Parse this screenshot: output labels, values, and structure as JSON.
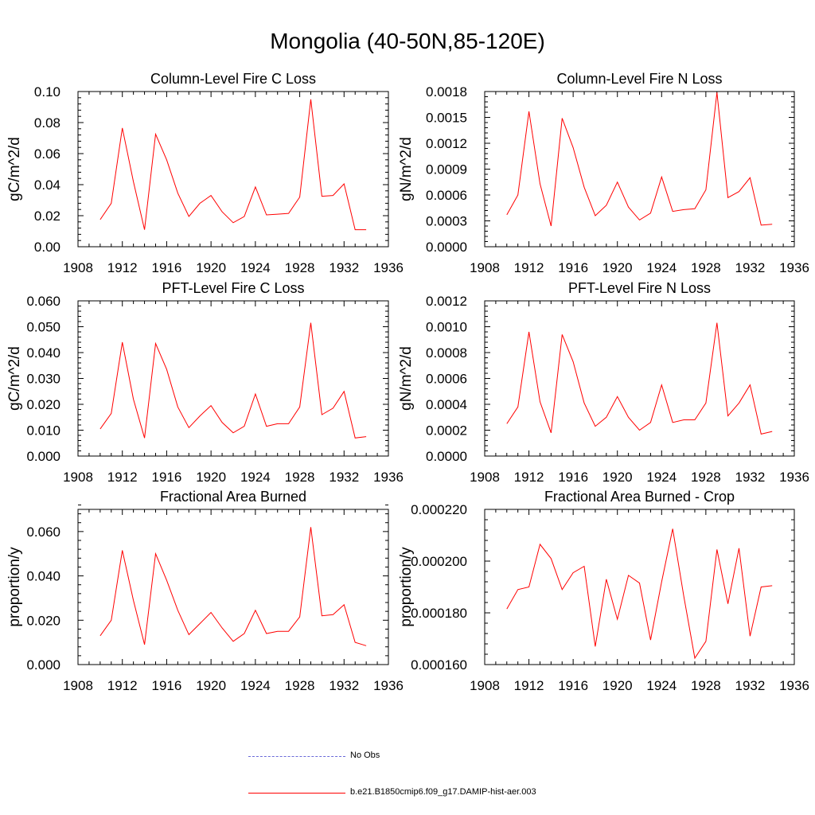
{
  "title": "Mongolia (40-50N,85-120E)",
  "colors": {
    "model": "#ff0000",
    "obs": "#6a6ad8",
    "axis": "#000000"
  },
  "legend": {
    "obs_label": "No Obs",
    "model_label": "b.e21.B1850cmip6.f09_g17.DAMIP-hist-aer.003"
  },
  "chart_data": [
    {
      "type": "line",
      "title": "Column-Level Fire C Loss",
      "ylabel": "gC/m^2/d",
      "xlim": [
        1908,
        1936
      ],
      "xticks": [
        "1908",
        "1912",
        "1916",
        "1920",
        "1924",
        "1928",
        "1932",
        "1936"
      ],
      "ylim": [
        0,
        0.1
      ],
      "yticks": [
        "0.00",
        "0.02",
        "0.04",
        "0.06",
        "0.08",
        "0.10"
      ],
      "x": [
        1910,
        1911,
        1912,
        1913,
        1914,
        1915,
        1916,
        1917,
        1918,
        1919,
        1920,
        1921,
        1922,
        1923,
        1924,
        1925,
        1926,
        1927,
        1928,
        1929,
        1930,
        1931,
        1932,
        1933,
        1934
      ],
      "series": [
        {
          "values": [
            0.0175,
            0.028,
            0.0765,
            0.042,
            0.011,
            0.0725,
            0.056,
            0.0345,
            0.0195,
            0.028,
            0.033,
            0.0225,
            0.0155,
            0.0195,
            0.0385,
            0.0205,
            0.021,
            0.0215,
            0.032,
            0.095,
            0.0325,
            0.033,
            0.0405,
            0.011,
            0.011
          ]
        }
      ]
    },
    {
      "type": "line",
      "title": "Column-Level Fire N Loss",
      "ylabel": "gN/m^2/d",
      "xlim": [
        1908,
        1936
      ],
      "xticks": [
        "1908",
        "1912",
        "1916",
        "1920",
        "1924",
        "1928",
        "1932",
        "1936"
      ],
      "ylim": [
        0,
        0.0018
      ],
      "yticks": [
        "0.0000",
        "0.0003",
        "0.0006",
        "0.0009",
        "0.0012",
        "0.0015",
        "0.0018"
      ],
      "x": [
        1910,
        1911,
        1912,
        1913,
        1914,
        1915,
        1916,
        1917,
        1918,
        1919,
        1920,
        1921,
        1922,
        1923,
        1924,
        1925,
        1926,
        1927,
        1928,
        1929,
        1930,
        1931,
        1932,
        1933,
        1934
      ],
      "series": [
        {
          "values": [
            0.00037,
            0.0006,
            0.00157,
            0.00073,
            0.00024,
            0.00149,
            0.00115,
            0.00069,
            0.00036,
            0.00048,
            0.00075,
            0.00046,
            0.00031,
            0.00039,
            0.00081,
            0.00041,
            0.00043,
            0.00044,
            0.00066,
            0.00179,
            0.00057,
            0.00064,
            0.0008,
            0.00025,
            0.00026
          ]
        }
      ]
    },
    {
      "type": "line",
      "title": "PFT-Level Fire C Loss",
      "ylabel": "gC/m^2/d",
      "xlim": [
        1908,
        1936
      ],
      "xticks": [
        "1908",
        "1912",
        "1916",
        "1920",
        "1924",
        "1928",
        "1932",
        "1936"
      ],
      "ylim": [
        0,
        0.06
      ],
      "yticks": [
        "0.000",
        "0.010",
        "0.020",
        "0.030",
        "0.040",
        "0.050",
        "0.060"
      ],
      "x": [
        1910,
        1911,
        1912,
        1913,
        1914,
        1915,
        1916,
        1917,
        1918,
        1919,
        1920,
        1921,
        1922,
        1923,
        1924,
        1925,
        1926,
        1927,
        1928,
        1929,
        1930,
        1931,
        1932,
        1933,
        1934
      ],
      "series": [
        {
          "values": [
            0.0105,
            0.0165,
            0.044,
            0.022,
            0.007,
            0.0435,
            0.0335,
            0.019,
            0.011,
            0.0155,
            0.0195,
            0.013,
            0.009,
            0.0115,
            0.024,
            0.0115,
            0.0125,
            0.0125,
            0.019,
            0.0515,
            0.016,
            0.0185,
            0.025,
            0.007,
            0.0075
          ]
        }
      ]
    },
    {
      "type": "line",
      "title": "PFT-Level Fire N Loss",
      "ylabel": "gN/m^2/d",
      "xlim": [
        1908,
        1936
      ],
      "xticks": [
        "1908",
        "1912",
        "1916",
        "1920",
        "1924",
        "1928",
        "1932",
        "1936"
      ],
      "ylim": [
        0,
        0.0012
      ],
      "yticks": [
        "0.0000",
        "0.0002",
        "0.0004",
        "0.0006",
        "0.0008",
        "0.0010",
        "0.0012"
      ],
      "x": [
        1910,
        1911,
        1912,
        1913,
        1914,
        1915,
        1916,
        1917,
        1918,
        1919,
        1920,
        1921,
        1922,
        1923,
        1924,
        1925,
        1926,
        1927,
        1928,
        1929,
        1930,
        1931,
        1932,
        1933,
        1934
      ],
      "series": [
        {
          "values": [
            0.00025,
            0.00038,
            0.00096,
            0.00042,
            0.00018,
            0.00094,
            0.00073,
            0.00041,
            0.00023,
            0.0003,
            0.00046,
            0.0003,
            0.0002,
            0.00026,
            0.00055,
            0.00026,
            0.00028,
            0.00028,
            0.00041,
            0.00103,
            0.00031,
            0.00041,
            0.00055,
            0.00017,
            0.00019
          ]
        }
      ]
    },
    {
      "type": "line",
      "title": "Fractional Area Burned",
      "ylabel": "proportion/y",
      "xlim": [
        1908,
        1936
      ],
      "xticks": [
        "1908",
        "1912",
        "1916",
        "1920",
        "1924",
        "1928",
        "1932",
        "1936"
      ],
      "ylim": [
        0,
        0.07
      ],
      "yticks": [
        "0.000",
        "0.020",
        "0.040",
        "0.060"
      ],
      "x": [
        1910,
        1911,
        1912,
        1913,
        1914,
        1915,
        1916,
        1917,
        1918,
        1919,
        1920,
        1921,
        1922,
        1923,
        1924,
        1925,
        1926,
        1927,
        1928,
        1929,
        1930,
        1931,
        1932,
        1933,
        1934
      ],
      "series": [
        {
          "values": [
            0.013,
            0.02,
            0.0515,
            0.029,
            0.009,
            0.05,
            0.038,
            0.0245,
            0.0135,
            0.0185,
            0.0235,
            0.0165,
            0.0105,
            0.014,
            0.0245,
            0.014,
            0.015,
            0.015,
            0.0215,
            0.062,
            0.022,
            0.0225,
            0.027,
            0.01,
            0.0085
          ]
        }
      ]
    },
    {
      "type": "line",
      "title": "Fractional Area Burned - Crop",
      "ylabel": "proportion/y",
      "xlim": [
        1908,
        1936
      ],
      "xticks": [
        "1908",
        "1912",
        "1916",
        "1920",
        "1924",
        "1928",
        "1932",
        "1936"
      ],
      "ylim": [
        0.00016,
        0.00022
      ],
      "yticks": [
        "0.000160",
        "0.000180",
        "0.000200",
        "0.000220"
      ],
      "x": [
        1910,
        1911,
        1912,
        1913,
        1914,
        1915,
        1916,
        1917,
        1918,
        1919,
        1920,
        1921,
        1922,
        1923,
        1924,
        1925,
        1926,
        1927,
        1928,
        1929,
        1930,
        1931,
        1932,
        1933,
        1934
      ],
      "series": [
        {
          "values": [
            0.0001815,
            0.000189,
            0.00019,
            0.0002065,
            0.000201,
            0.000189,
            0.0001955,
            0.000198,
            0.000167,
            0.000193,
            0.0001775,
            0.0001945,
            0.0001915,
            0.0001695,
            0.000192,
            0.0002125,
            0.0001865,
            0.0001625,
            0.000169,
            0.0002045,
            0.0001835,
            0.000205,
            0.000171,
            0.00019,
            0.0001905
          ]
        }
      ]
    }
  ]
}
